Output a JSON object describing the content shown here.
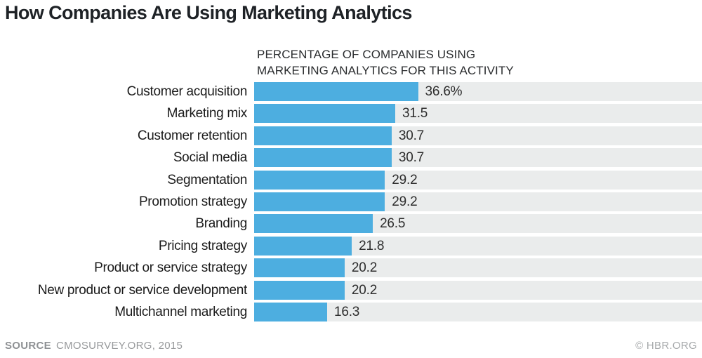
{
  "title": "How Companies Are Using Marketing Analytics",
  "caption": {
    "line1": "PERCENTAGE OF COMPANIES USING",
    "line2": "MARKETING ANALYTICS FOR THIS ACTIVITY"
  },
  "footer": {
    "source_label": "SOURCE",
    "source_value": "CMOSURVEY.ORG, 2015",
    "credit": "© HBR.ORG"
  },
  "colors": {
    "bar": "#4daee0",
    "track": "#eaecec",
    "title_text": "#1e2226",
    "label_text": "#1b1b1b",
    "value_text": "#2d2d2d"
  },
  "chart_data": {
    "type": "bar",
    "orientation": "horizontal",
    "title": "How Companies Are Using Marketing Analytics",
    "xlabel": "PERCENTAGE OF COMPANIES USING MARKETING ANALYTICS FOR THIS ACTIVITY",
    "ylabel": "",
    "xlim": [
      0,
      100
    ],
    "grid": false,
    "legend": "none",
    "categories": [
      "Customer acquisition",
      "Marketing mix",
      "Customer retention",
      "Social media",
      "Segmentation",
      "Promotion strategy",
      "Branding",
      "Pricing strategy",
      "Product or service strategy",
      "New product or service development",
      "Multichannel marketing"
    ],
    "values": [
      36.6,
      31.5,
      30.7,
      30.7,
      29.2,
      29.2,
      26.5,
      21.8,
      20.2,
      20.2,
      16.3
    ],
    "value_labels": [
      "36.6%",
      "31.5",
      "30.7",
      "30.7",
      "29.2",
      "29.2",
      "26.5",
      "21.8",
      "20.2",
      "20.2",
      "16.3"
    ]
  }
}
